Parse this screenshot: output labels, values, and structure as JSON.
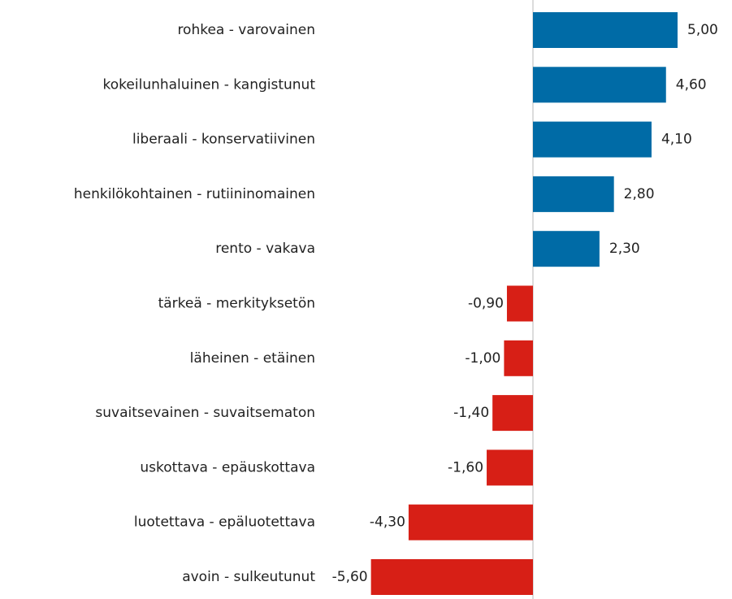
{
  "chart_data": {
    "type": "hbar",
    "categories": [
      "rohkea - varovainen",
      "kokeilunhaluinen - kangistunut",
      "liberaali - konservatiivinen",
      "henkilökohtainen - rutiininomainen",
      "rento - vakava",
      "tärkeä - merkityksetön",
      "läheinen - etäinen",
      "suvaitsevainen - suvaitsematon",
      "uskottava - epäuskottava",
      "luotettava - epäluotettava",
      "avoin - sulkeutunut"
    ],
    "values": [
      5.0,
      4.6,
      4.1,
      2.8,
      2.3,
      -0.9,
      -1.0,
      -1.4,
      -1.6,
      -4.3,
      -5.6
    ],
    "value_labels": [
      "5,00",
      "4,60",
      "4,10",
      "2,80",
      "2,30",
      "-0,90",
      "-1,00",
      "-1,40",
      "-1,60",
      "-4,30",
      "-5,60"
    ],
    "colors": {
      "positive": "#006ba6",
      "negative": "#d71f16"
    }
  }
}
